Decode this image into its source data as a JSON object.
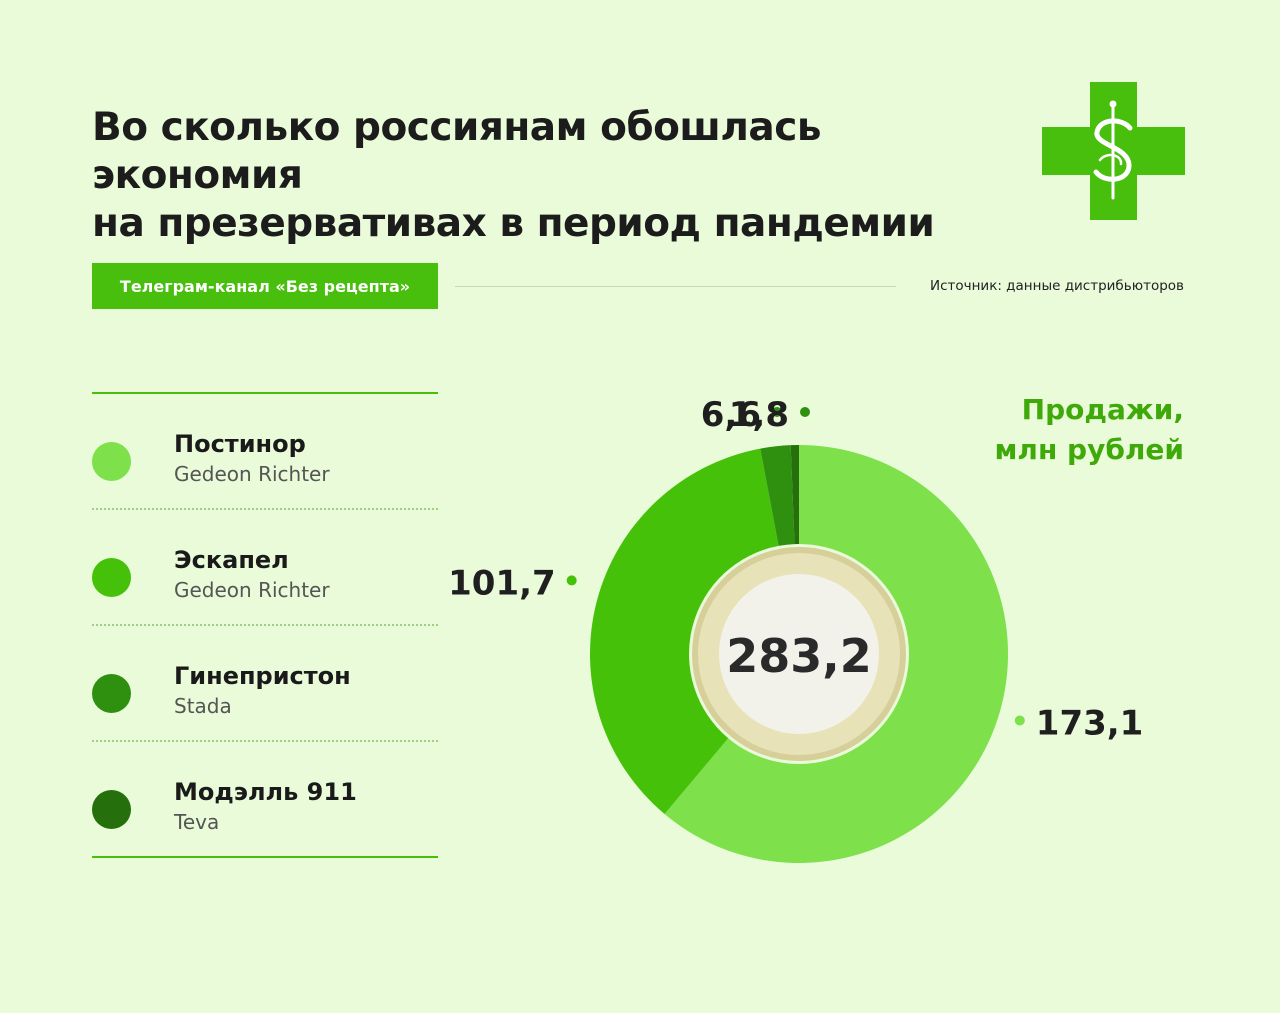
{
  "header": {
    "title_line1": "Во сколько россиянам обошлась экономия",
    "title_line2": "на презервативах в период пандемии",
    "logo_icon": "pharmacy-cross-dollar-icon"
  },
  "channel_label": "Телеграм-канал «Без рецепта»",
  "source": "Источник: данные дистрибьюторов",
  "legend": [
    {
      "name": "Постинор",
      "maker": "Gedeon Richter",
      "color": "#7ee04a"
    },
    {
      "name": "Эскапел",
      "maker": "Gedeon Richter",
      "color": "#45c10a"
    },
    {
      "name": "Гинепристон",
      "maker": "Stada",
      "color": "#2f9010"
    },
    {
      "name": "Модэлль 911",
      "maker": "Teva",
      "color": "#266f0d"
    }
  ],
  "chart_data": {
    "type": "pie",
    "unit_label_line1": "Продажи,",
    "unit_label_line2": "млн рублей",
    "total": "283,2",
    "categories": [
      "Постинор",
      "Эскапел",
      "Гинепристон",
      "Модэлль 911"
    ],
    "values": [
      173.1,
      101.7,
      6.6,
      1.8
    ],
    "value_labels": [
      "173,1",
      "101,7",
      "6,6",
      "1,8"
    ],
    "colors": [
      "#7ee04a",
      "#45c10a",
      "#2f9010",
      "#266f0d"
    ],
    "center_color": "#2a2a2a",
    "label_color": "#1f1f1f"
  }
}
